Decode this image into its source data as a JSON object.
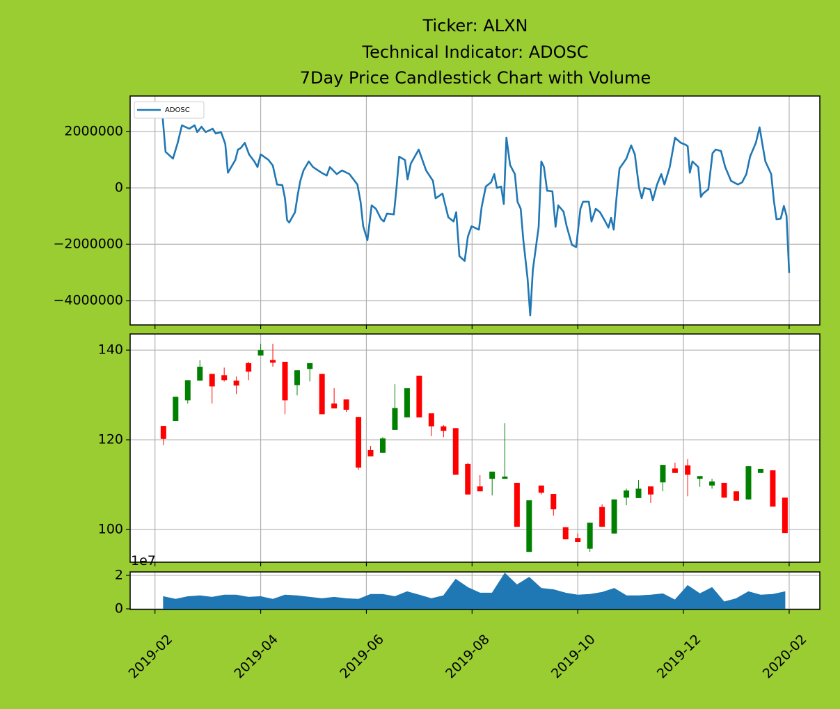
{
  "chart_data": [
    {
      "type": "line",
      "title": [
        "Ticker: ALXN",
        "Technical Indicator: ADOSC",
        "7Day Price Candlestick Chart with Volume"
      ],
      "series": [
        {
          "name": "ADOSC",
          "color": "#1f77b4",
          "x": [
            1.13,
            1.2,
            1.34,
            1.43,
            1.51,
            1.65,
            1.75,
            1.8,
            1.88,
            1.96,
            2.09,
            2.15,
            2.25,
            2.33,
            2.38,
            2.52,
            2.57,
            2.62,
            2.7,
            2.78,
            2.88,
            2.94,
            3.0,
            3.15,
            3.23,
            3.31,
            3.41,
            3.46,
            3.5,
            3.54,
            3.65,
            3.7,
            3.75,
            3.81,
            3.91,
            3.99,
            4.15,
            4.25,
            4.31,
            4.44,
            4.54,
            4.68,
            4.83,
            4.89,
            4.94,
            5.02,
            5.1,
            5.18,
            5.28,
            5.33,
            5.39,
            5.52,
            5.57,
            5.62,
            5.73,
            5.78,
            5.84,
            5.99,
            6.13,
            6.26,
            6.31,
            6.44,
            6.55,
            6.65,
            6.7,
            6.76,
            6.86,
            6.92,
            6.99,
            7.13,
            7.18,
            7.26,
            7.36,
            7.42,
            7.47,
            7.55,
            7.6,
            7.65,
            7.72,
            7.81,
            7.86,
            7.92,
            7.97,
            8.05,
            8.1,
            8.15,
            8.26,
            8.31,
            8.36,
            8.42,
            8.52,
            8.58,
            8.63,
            8.73,
            8.79,
            8.89,
            8.97,
            9.05,
            9.1,
            9.21,
            9.26,
            9.34,
            9.42,
            9.52,
            9.58,
            9.63,
            9.68,
            9.74,
            9.79,
            9.92,
            10.01,
            10.08,
            10.16,
            10.21,
            10.26,
            10.37,
            10.42,
            10.5,
            10.58,
            10.64,
            10.74,
            10.84,
            10.95,
            11.04,
            11.08,
            11.12,
            11.17,
            11.28,
            11.33,
            11.37,
            11.47,
            11.55,
            11.61,
            11.71,
            11.79,
            11.9,
            12.03,
            12.11,
            12.19,
            12.26,
            12.37,
            12.44,
            12.5,
            12.55,
            12.66,
            12.71,
            12.76,
            12.84,
            12.9,
            12.95,
            13.0
          ],
          "values": [
            2840000,
            1280000,
            1040000,
            1600000,
            2220000,
            2100000,
            2220000,
            1980000,
            2170000,
            1980000,
            2100000,
            1930000,
            1980000,
            1560000,
            540000,
            990000,
            1360000,
            1410000,
            1600000,
            1190000,
            940000,
            740000,
            1190000,
            990000,
            790000,
            120000,
            100000,
            -370000,
            -1140000,
            -1230000,
            -860000,
            -250000,
            250000,
            620000,
            940000,
            740000,
            540000,
            440000,
            740000,
            490000,
            620000,
            490000,
            120000,
            -490000,
            -1360000,
            -1850000,
            -620000,
            -740000,
            -1110000,
            -1190000,
            -910000,
            -940000,
            0,
            1110000,
            990000,
            300000,
            860000,
            1360000,
            620000,
            250000,
            -370000,
            -200000,
            -1040000,
            -1190000,
            -860000,
            -2420000,
            -2590000,
            -1730000,
            -1360000,
            -1480000,
            -690000,
            50000,
            200000,
            490000,
            0,
            50000,
            -570000,
            1780000,
            810000,
            490000,
            -490000,
            -740000,
            -1850000,
            -3210000,
            -4520000,
            -2910000,
            -1380000,
            940000,
            740000,
            -100000,
            -120000,
            -1380000,
            -620000,
            -840000,
            -1360000,
            -2020000,
            -2100000,
            -740000,
            -490000,
            -490000,
            -1190000,
            -740000,
            -860000,
            -1190000,
            -1410000,
            -1060000,
            -1480000,
            -200000,
            690000,
            1040000,
            1510000,
            1190000,
            0,
            -370000,
            0,
            -50000,
            -440000,
            120000,
            490000,
            120000,
            740000,
            1780000,
            1600000,
            1530000,
            1480000,
            540000,
            940000,
            740000,
            -320000,
            -200000,
            -50000,
            1230000,
            1360000,
            1310000,
            740000,
            250000,
            120000,
            200000,
            490000,
            1110000,
            1600000,
            2150000,
            1480000,
            940000,
            490000,
            -440000,
            -1110000,
            -1090000,
            -640000,
            -990000,
            -3010000
          ]
        }
      ],
      "ylim": [
        -4860000,
        3260000
      ],
      "yticks": [
        {
          "value": -4000000,
          "label": "−4000000"
        },
        {
          "value": -2000000,
          "label": "−2000000"
        },
        0,
        2000000
      ],
      "grid": true,
      "legend": "upper left"
    },
    {
      "type": "candlestick",
      "x": [
        1.16,
        1.39,
        1.62,
        1.85,
        2.08,
        2.31,
        2.54,
        2.77,
        3.0,
        3.23,
        3.46,
        3.69,
        3.93,
        4.16,
        4.39,
        4.62,
        4.85,
        5.08,
        5.31,
        5.54,
        5.77,
        6.0,
        6.23,
        6.46,
        6.69,
        6.92,
        7.15,
        7.38,
        7.62,
        7.85,
        8.08,
        8.31,
        8.54,
        8.77,
        9.0,
        9.23,
        9.46,
        9.69,
        9.92,
        10.15,
        10.38,
        10.61,
        10.84,
        11.08,
        11.31,
        11.54,
        11.77,
        12.0,
        12.23,
        12.46,
        12.69,
        12.92
      ],
      "open": [
        123.1,
        124.2,
        128.8,
        133.2,
        134.7,
        134.4,
        133.2,
        137.1,
        138.8,
        137.8,
        137.4,
        132.2,
        135.8,
        134.7,
        128.1,
        129.0,
        125.1,
        117.7,
        117.1,
        122.2,
        125.0,
        134.3,
        125.9,
        123.0,
        122.6,
        114.6,
        109.6,
        111.3,
        111.3,
        110.4,
        95.0,
        109.8,
        107.9,
        100.5,
        98.1,
        95.7,
        105.0,
        99.1,
        107.1,
        107.0,
        109.6,
        110.5,
        113.6,
        114.3,
        111.3,
        109.8,
        110.4,
        108.5,
        106.7,
        112.6,
        113.2,
        107.1
      ],
      "high": [
        123.1,
        129.6,
        133.3,
        137.8,
        134.7,
        136.1,
        134.1,
        137.4,
        141.4,
        141.4,
        137.4,
        135.5,
        137.1,
        134.7,
        131.5,
        129.0,
        125.1,
        118.6,
        120.6,
        132.4,
        131.5,
        134.3,
        125.9,
        123.3,
        122.6,
        114.9,
        112.1,
        112.9,
        123.7,
        110.4,
        106.5,
        109.8,
        107.9,
        100.5,
        99.1,
        101.5,
        105.6,
        106.7,
        109.1,
        111.0,
        109.6,
        114.4,
        114.9,
        115.7,
        111.9,
        111.3,
        110.4,
        108.5,
        114.1,
        113.5,
        113.2,
        107.1
      ],
      "low": [
        118.8,
        124.2,
        128.1,
        133.2,
        128.1,
        133.0,
        130.2,
        133.3,
        138.8,
        136.3,
        125.7,
        129.9,
        133.0,
        125.7,
        127.0,
        126.2,
        113.3,
        116.3,
        117.1,
        122.2,
        125.0,
        125.0,
        120.8,
        120.6,
        112.2,
        107.8,
        108.5,
        107.6,
        111.3,
        100.6,
        95.0,
        107.8,
        103.1,
        97.8,
        97.2,
        95.0,
        100.6,
        99.1,
        105.4,
        107.0,
        105.9,
        108.5,
        112.6,
        107.4,
        109.5,
        109.1,
        107.1,
        106.4,
        106.7,
        112.6,
        105.1,
        99.2
      ],
      "close": [
        120.2,
        129.6,
        133.3,
        136.3,
        131.9,
        133.3,
        132.1,
        135.2,
        140.0,
        137.2,
        128.8,
        135.5,
        137.1,
        125.7,
        127.0,
        126.7,
        113.8,
        116.3,
        120.3,
        127.1,
        131.5,
        125.0,
        123.0,
        122.0,
        112.2,
        107.8,
        108.5,
        112.9,
        111.8,
        100.6,
        106.5,
        108.2,
        104.5,
        97.8,
        97.2,
        101.5,
        100.6,
        106.7,
        108.7,
        109.1,
        107.8,
        114.4,
        112.6,
        112.2,
        111.9,
        110.7,
        107.1,
        106.4,
        114.1,
        113.5,
        105.1,
        99.2
      ],
      "up_color": "green",
      "down_color": "red",
      "ylim": [
        92.7,
        143.6
      ],
      "yticks": [
        100,
        120,
        140
      ],
      "grid": true
    },
    {
      "type": "area",
      "color": "#1f77b4",
      "x": [
        1.16,
        1.39,
        1.62,
        1.85,
        2.08,
        2.31,
        2.54,
        2.77,
        3.0,
        3.23,
        3.46,
        3.69,
        3.93,
        4.16,
        4.39,
        4.62,
        4.85,
        5.08,
        5.31,
        5.54,
        5.77,
        6.0,
        6.23,
        6.46,
        6.69,
        6.92,
        7.15,
        7.38,
        7.62,
        7.85,
        8.08,
        8.31,
        8.54,
        8.77,
        9.0,
        9.23,
        9.46,
        9.69,
        9.92,
        10.15,
        10.38,
        10.61,
        10.84,
        11.08,
        11.31,
        11.54,
        11.77,
        12.0,
        12.23,
        12.46,
        12.69,
        12.92
      ],
      "values": [
        7300000,
        5700000,
        7300000,
        7800000,
        6900000,
        8200000,
        8200000,
        6900000,
        7300000,
        5700000,
        8200000,
        7800000,
        6900000,
        6100000,
        6900000,
        6100000,
        5700000,
        8600000,
        8600000,
        7300000,
        10200000,
        8200000,
        6100000,
        7800000,
        17600000,
        12700000,
        9400000,
        9400000,
        21200000,
        14300000,
        18800000,
        12200000,
        11400000,
        9400000,
        8200000,
        8600000,
        9800000,
        12200000,
        7800000,
        7800000,
        8200000,
        9000000,
        5300000,
        13900000,
        9000000,
        12700000,
        4100000,
        6100000,
        10200000,
        8200000,
        8600000,
        10200000
      ],
      "ylim": [
        -400000,
        22000000
      ],
      "yticks": [
        0,
        {
          "value": 20000000,
          "label": "2"
        }
      ],
      "y_offset_label": "1e7",
      "xlim": [
        0.53,
        13.58
      ],
      "xticks": [
        {
          "value": 1,
          "label": "2019-02"
        },
        {
          "value": 3,
          "label": "2019-04"
        },
        {
          "value": 5,
          "label": "2019-06"
        },
        {
          "value": 7,
          "label": "2019-08"
        },
        {
          "value": 9,
          "label": "2019-10"
        },
        {
          "value": 11,
          "label": "2019-12"
        },
        {
          "value": 13,
          "label": "2020-02"
        }
      ],
      "grid": true
    }
  ]
}
